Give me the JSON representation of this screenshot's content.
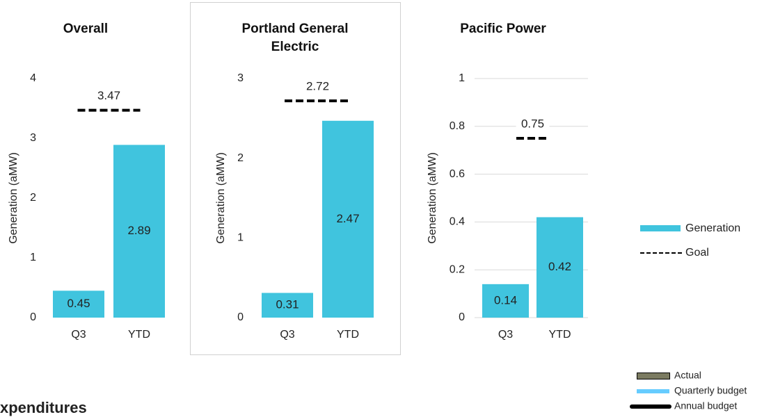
{
  "chart_data": [
    {
      "type": "bar",
      "title": "Overall",
      "y_label": "Generation (aMW)",
      "categories": [
        "Q3",
        "YTD"
      ],
      "series": [
        {
          "name": "Generation",
          "color": "#40c4de",
          "values": [
            0.45,
            2.89
          ]
        }
      ],
      "goal": {
        "name": "Goal",
        "value": 3.47
      },
      "ylim": [
        0,
        4
      ],
      "yticks": [
        0,
        1,
        2,
        3,
        4
      ],
      "grid": false
    },
    {
      "type": "bar",
      "title": "Portland General Electric",
      "y_label": "Generation (aMW)",
      "categories": [
        "Q3",
        "YTD"
      ],
      "series": [
        {
          "name": "Generation",
          "color": "#40c4de",
          "values": [
            0.31,
            2.47
          ]
        }
      ],
      "goal": {
        "name": "Goal",
        "value": 2.72
      },
      "ylim": [
        0,
        3
      ],
      "yticks": [
        0,
        1,
        2,
        3
      ],
      "grid": false
    },
    {
      "type": "bar",
      "title": "Pacific Power",
      "y_label": "Generation (aMW)",
      "categories": [
        "Q3",
        "YTD"
      ],
      "series": [
        {
          "name": "Generation",
          "color": "#40c4de",
          "values": [
            0.14,
            0.42
          ]
        }
      ],
      "goal": {
        "name": "Goal",
        "value": 0.75
      },
      "ylim": [
        0,
        1
      ],
      "yticks": [
        0,
        0.2,
        0.4,
        0.6,
        0.8,
        1
      ],
      "grid": true
    }
  ],
  "budget_legend": [
    {
      "name": "Actual",
      "color": "#7b7b61"
    },
    {
      "name": "Quarterly budget",
      "color": "#66ccff"
    },
    {
      "name": "Annual budget",
      "color": "#000000"
    }
  ],
  "heading": "xpenditures"
}
